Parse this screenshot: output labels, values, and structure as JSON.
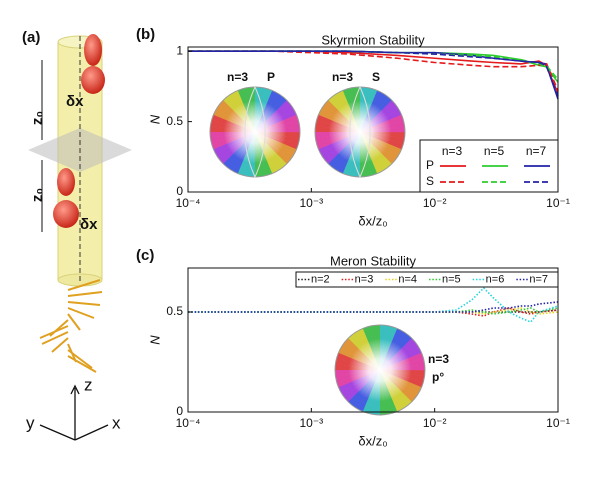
{
  "panel_a": {
    "label": "(a)",
    "z_labels": [
      "z₀",
      "z₀"
    ],
    "shift_labels": [
      "δx",
      "δx"
    ],
    "axes": [
      "z",
      "y",
      "x"
    ]
  },
  "chart_data": [
    {
      "type": "line",
      "panel": "(b)",
      "title": "Skyrmion Stability",
      "xlabel": "δx/z₀",
      "ylabel": "N",
      "xscale": "log",
      "xlim": [
        0.0001,
        0.1
      ],
      "xticks": [
        {
          "value": 0.0001,
          "label": "10⁻⁴"
        },
        {
          "value": 0.001,
          "label": "10⁻³"
        },
        {
          "value": 0.01,
          "label": "10⁻²"
        },
        {
          "value": 0.1,
          "label": "10⁻¹"
        }
      ],
      "ylim": [
        0,
        1.03
      ],
      "yticks": [
        0,
        0.5,
        1
      ],
      "legend": {
        "columns": [
          "n=3",
          "n=5",
          "n=7"
        ],
        "rows": [
          "P",
          "S"
        ]
      },
      "insets": [
        {
          "label": "n=3",
          "kind": "P"
        },
        {
          "label": "n=3",
          "kind": "S"
        }
      ],
      "x": [
        0.0001,
        0.0002,
        0.0005,
        0.001,
        0.002,
        0.005,
        0.01,
        0.02,
        0.03,
        0.05,
        0.07,
        0.08,
        0.1
      ],
      "series": [
        {
          "color": "#e41a1c",
          "dash": "solid",
          "values": [
            1,
            1,
            1,
            1,
            0.99,
            0.97,
            0.95,
            0.93,
            0.92,
            0.91,
            0.93,
            0.9,
            0.7
          ]
        },
        {
          "color": "#2ecc2e",
          "dash": "solid",
          "values": [
            1,
            1,
            1,
            1,
            1,
            0.99,
            0.99,
            0.98,
            0.97,
            0.94,
            0.9,
            0.89,
            0.78
          ]
        },
        {
          "color": "#2323a8",
          "dash": "solid",
          "values": [
            1,
            1,
            1,
            1,
            1,
            0.99,
            0.99,
            0.97,
            0.95,
            0.93,
            0.92,
            0.91,
            0.66
          ]
        },
        {
          "color": "#e41a1c",
          "dash": "dashed",
          "values": [
            1,
            1,
            1,
            0.99,
            0.98,
            0.95,
            0.92,
            0.9,
            0.89,
            0.89,
            0.9,
            0.92,
            0.72
          ]
        },
        {
          "color": "#2ecc2e",
          "dash": "dashed",
          "values": [
            1,
            1,
            1,
            1,
            1,
            0.99,
            0.98,
            0.97,
            0.96,
            0.94,
            0.91,
            0.9,
            0.8
          ]
        },
        {
          "color": "#2323a8",
          "dash": "dashed",
          "values": [
            1,
            1,
            1,
            1,
            1,
            0.99,
            0.98,
            0.96,
            0.95,
            0.93,
            0.92,
            0.9,
            0.68
          ]
        }
      ]
    },
    {
      "type": "line",
      "panel": "(c)",
      "title": "Meron Stability",
      "xlabel": "δx/z₀",
      "ylabel": "N",
      "xscale": "log",
      "xlim": [
        0.0001,
        0.1
      ],
      "xticks": [
        {
          "value": 0.0001,
          "label": "10⁻⁴"
        },
        {
          "value": 0.001,
          "label": "10⁻³"
        },
        {
          "value": 0.01,
          "label": "10⁻²"
        },
        {
          "value": 0.1,
          "label": "10⁻¹"
        }
      ],
      "ylim": [
        0,
        0.72
      ],
      "yticks": [
        0,
        0.5
      ],
      "insets": [
        {
          "label": "n=3",
          "kind": "p°"
        }
      ],
      "x": [
        0.0001,
        0.001,
        0.01,
        0.015,
        0.02,
        0.025,
        0.03,
        0.04,
        0.05,
        0.06,
        0.07,
        0.1
      ],
      "series": [
        {
          "name": "n=2",
          "color": "#222222",
          "dash": "dotted",
          "values": [
            0.5,
            0.5,
            0.5,
            0.5,
            0.5,
            0.5,
            0.5,
            0.5,
            0.5,
            0.5,
            0.5,
            0.51
          ]
        },
        {
          "name": "n=3",
          "color": "#e41a1c",
          "dash": "dotted",
          "values": [
            0.5,
            0.5,
            0.5,
            0.5,
            0.49,
            0.48,
            0.5,
            0.52,
            0.5,
            0.49,
            0.5,
            0.51
          ]
        },
        {
          "name": "n=4",
          "color": "#e8d21d",
          "dash": "dotted",
          "values": [
            0.5,
            0.5,
            0.5,
            0.5,
            0.5,
            0.49,
            0.5,
            0.51,
            0.52,
            0.5,
            0.49,
            0.5
          ]
        },
        {
          "name": "n=5",
          "color": "#2ecc2e",
          "dash": "dotted",
          "values": [
            0.5,
            0.5,
            0.5,
            0.5,
            0.51,
            0.5,
            0.49,
            0.5,
            0.51,
            0.52,
            0.5,
            0.52
          ]
        },
        {
          "name": "n=6",
          "color": "#22d4dd",
          "dash": "dotted",
          "values": [
            0.5,
            0.5,
            0.5,
            0.51,
            0.56,
            0.62,
            0.57,
            0.5,
            0.47,
            0.45,
            0.5,
            0.53
          ]
        },
        {
          "name": "n=7",
          "color": "#2323a8",
          "dash": "dotted",
          "values": [
            0.5,
            0.5,
            0.5,
            0.5,
            0.5,
            0.51,
            0.52,
            0.52,
            0.53,
            0.53,
            0.54,
            0.55
          ]
        }
      ]
    }
  ]
}
